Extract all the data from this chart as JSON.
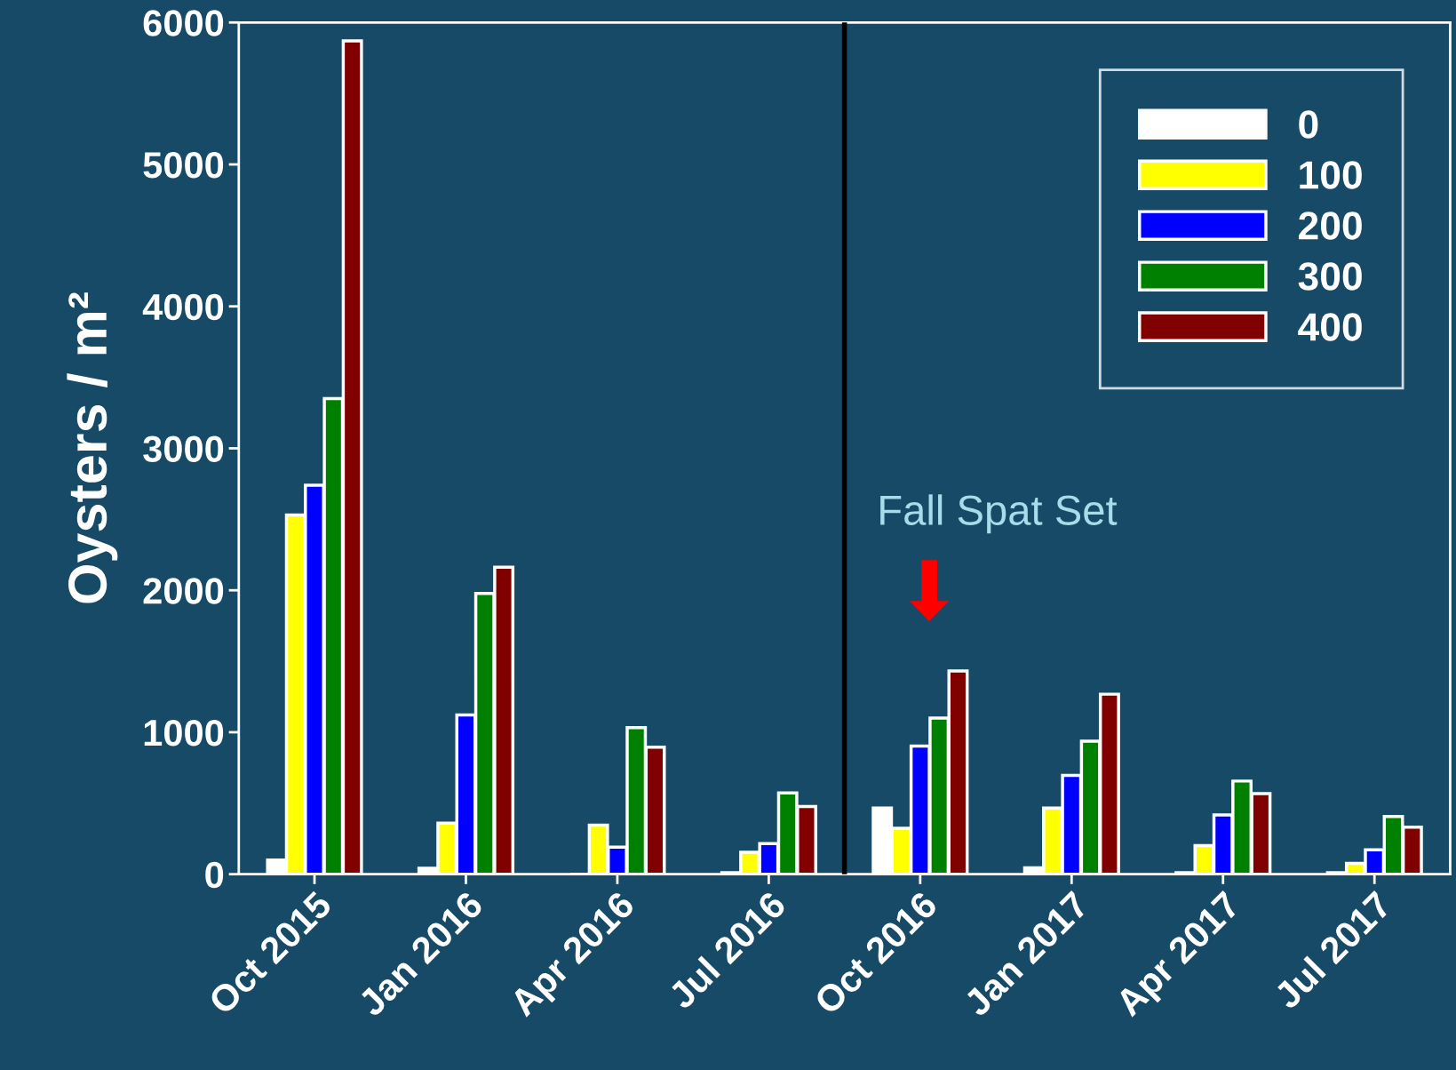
{
  "chart_data": {
    "type": "bar",
    "ylabel": "Oysters / m²",
    "categories": [
      "Oct 2015",
      "Jan 2016",
      "Apr 2016",
      "Jul 2016",
      "Oct 2016",
      "Jan 2017",
      "Apr 2017",
      "Jul 2017"
    ],
    "series": [
      {
        "name": "0",
        "color": "#ffffff",
        "values": [
          100,
          42,
          0,
          10,
          466,
          45,
          11,
          11
        ]
      },
      {
        "name": "100",
        "color": "#ffff00",
        "values": [
          2530,
          359,
          345,
          154,
          323,
          466,
          202,
          76
        ]
      },
      {
        "name": "200",
        "color": "#0000ff",
        "values": [
          2740,
          1122,
          191,
          216,
          903,
          696,
          418,
          171
        ]
      },
      {
        "name": "300",
        "color": "#008000",
        "values": [
          3350,
          1978,
          1032,
          572,
          1100,
          937,
          656,
          407
        ]
      },
      {
        "name": "400",
        "color": "#800000",
        "values": [
          5870,
          2163,
          895,
          477,
          1431,
          1268,
          567,
          331
        ]
      }
    ],
    "ylim": [
      0,
      6000
    ],
    "yticks": [
      0,
      1000,
      2000,
      3000,
      4000,
      5000,
      6000
    ],
    "annotations": [
      "Fall Spat Set"
    ],
    "legend": "top right",
    "grid": false
  }
}
